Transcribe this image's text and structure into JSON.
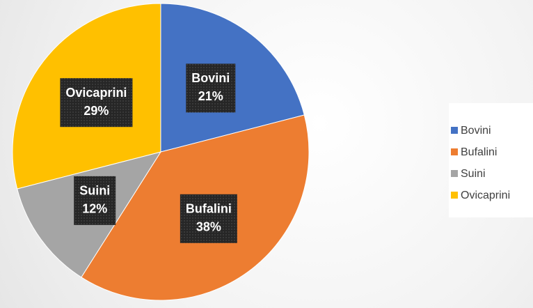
{
  "chart_data": {
    "type": "pie",
    "categories": [
      "Bovini",
      "Bufalini",
      "Suini",
      "Ovicaprini"
    ],
    "values": [
      21,
      38,
      12,
      29
    ],
    "value_labels": [
      "21%",
      "38%",
      "12%",
      "29%"
    ],
    "colors": [
      "#4472c4",
      "#ed7d31",
      "#a5a5a5",
      "#ffc000"
    ],
    "legend": "right"
  }
}
